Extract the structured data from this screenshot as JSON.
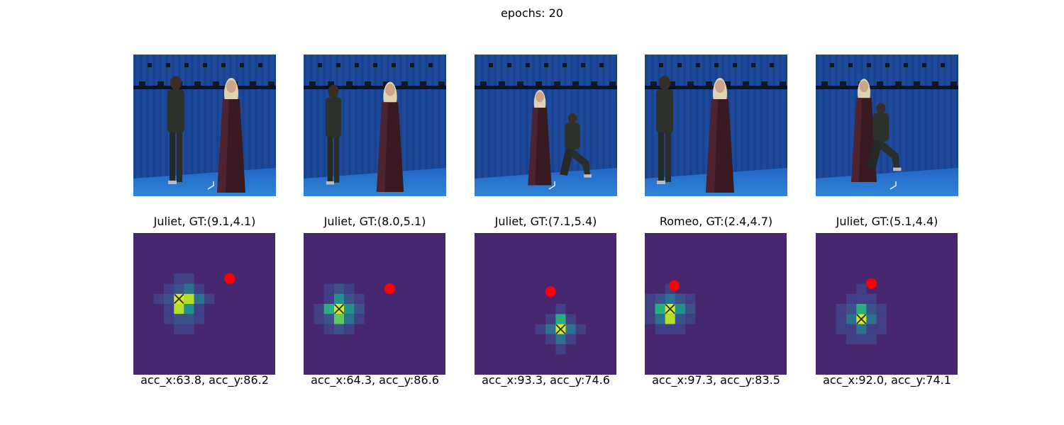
{
  "suptitle": "epochs: 20",
  "colors": {
    "heat_background": "#46266e",
    "heat_scale": [
      "#46266e",
      "#413f85",
      "#3b528b",
      "#2c728e",
      "#21918c",
      "#28ae80",
      "#5ec962",
      "#b5dd2b",
      "#dbe32a"
    ],
    "gt_marker": "#ff0000",
    "pred_marker": "#1a3a2a",
    "studio_blue": "#1e4a9c",
    "floor_blue": "#2f84d8"
  },
  "chart_data": [
    {
      "type": "heatmap",
      "photo_scene": "facing",
      "title": "Juliet, GT:(9.1,4.1)",
      "caption": "acc_x:63.8, acc_y:86.2",
      "grid": 14,
      "pred": [
        4.5,
        6.5
      ],
      "gt": [
        9.5,
        4.5
      ],
      "cells": [
        [
          4,
          6,
          8
        ],
        [
          5,
          6,
          7
        ],
        [
          4,
          7,
          7
        ],
        [
          3,
          6,
          2
        ],
        [
          6,
          6,
          3
        ],
        [
          5,
          5,
          3
        ],
        [
          4,
          5,
          2
        ],
        [
          5,
          7,
          4
        ],
        [
          3,
          7,
          1
        ],
        [
          4,
          8,
          2
        ],
        [
          5,
          8,
          2
        ],
        [
          6,
          7,
          1
        ],
        [
          2,
          6,
          1
        ],
        [
          7,
          6,
          1
        ],
        [
          4,
          4,
          1
        ],
        [
          5,
          4,
          1
        ],
        [
          3,
          5,
          1
        ],
        [
          6,
          5,
          1
        ],
        [
          3,
          8,
          1
        ],
        [
          6,
          8,
          1
        ],
        [
          4,
          9,
          1
        ],
        [
          5,
          9,
          1
        ]
      ]
    },
    {
      "type": "heatmap",
      "photo_scene": "reach",
      "title": "Juliet, GT:(8.0,5.1)",
      "caption": "acc_x:64.3, acc_y:86.6",
      "grid": 14,
      "pred": [
        3.5,
        7.5
      ],
      "gt": [
        8.5,
        5.5
      ],
      "cells": [
        [
          3,
          7,
          8
        ],
        [
          2,
          7,
          5
        ],
        [
          3,
          6,
          4
        ],
        [
          3,
          8,
          6
        ],
        [
          4,
          7,
          4
        ],
        [
          2,
          6,
          1
        ],
        [
          4,
          6,
          2
        ],
        [
          2,
          8,
          2
        ],
        [
          4,
          8,
          3
        ],
        [
          1,
          7,
          1
        ],
        [
          5,
          7,
          2
        ],
        [
          3,
          5,
          2
        ],
        [
          3,
          9,
          2
        ],
        [
          2,
          9,
          1
        ],
        [
          4,
          9,
          1
        ],
        [
          5,
          8,
          1
        ],
        [
          5,
          6,
          1
        ],
        [
          1,
          8,
          1
        ],
        [
          2,
          5,
          1
        ],
        [
          4,
          5,
          1
        ]
      ]
    },
    {
      "type": "heatmap",
      "photo_scene": "kneel",
      "title": "Juliet, GT:(7.1,5.4)",
      "caption": "acc_x:93.3, acc_y:74.6",
      "grid": 14,
      "pred": [
        8.5,
        9.5
      ],
      "gt": [
        7.5,
        5.8
      ],
      "cells": [
        [
          8,
          9,
          8
        ],
        [
          8,
          8,
          5
        ],
        [
          7,
          9,
          3
        ],
        [
          9,
          9,
          3
        ],
        [
          8,
          10,
          3
        ],
        [
          7,
          8,
          1
        ],
        [
          9,
          8,
          1
        ],
        [
          7,
          10,
          1
        ],
        [
          9,
          10,
          1
        ],
        [
          8,
          7,
          1
        ],
        [
          10,
          9,
          1
        ],
        [
          6,
          9,
          1
        ],
        [
          8,
          11,
          1
        ]
      ]
    },
    {
      "type": "heatmap",
      "photo_scene": "facing2",
      "title": "Romeo, GT:(2.4,4.7)",
      "caption": "acc_x:97.3, acc_y:83.5",
      "grid": 14,
      "pred": [
        2.5,
        7.5
      ],
      "gt": [
        2.9,
        5.2
      ],
      "cells": [
        [
          2,
          7,
          8
        ],
        [
          2,
          8,
          7
        ],
        [
          1,
          7,
          5
        ],
        [
          3,
          7,
          4
        ],
        [
          2,
          6,
          3
        ],
        [
          1,
          8,
          3
        ],
        [
          3,
          8,
          2
        ],
        [
          1,
          6,
          2
        ],
        [
          3,
          6,
          2
        ],
        [
          0,
          7,
          1
        ],
        [
          4,
          7,
          2
        ],
        [
          2,
          9,
          1
        ],
        [
          1,
          9,
          1
        ],
        [
          3,
          9,
          1
        ],
        [
          0,
          8,
          1
        ],
        [
          4,
          8,
          1
        ],
        [
          2,
          5,
          1
        ],
        [
          4,
          6,
          1
        ],
        [
          0,
          6,
          1
        ]
      ]
    },
    {
      "type": "heatmap",
      "photo_scene": "kneel2",
      "title": "Juliet, GT:(5.1,4.4)",
      "caption": "acc_x:92.0, acc_y:74.1",
      "grid": 14,
      "pred": [
        4.5,
        8.5
      ],
      "gt": [
        5.5,
        5.0
      ],
      "cells": [
        [
          4,
          8,
          8
        ],
        [
          4,
          7,
          5
        ],
        [
          3,
          8,
          3
        ],
        [
          5,
          8,
          3
        ],
        [
          4,
          9,
          3
        ],
        [
          3,
          7,
          2
        ],
        [
          5,
          7,
          2
        ],
        [
          3,
          9,
          1
        ],
        [
          5,
          9,
          1
        ],
        [
          2,
          8,
          1
        ],
        [
          6,
          8,
          1
        ],
        [
          4,
          6,
          1
        ],
        [
          4,
          10,
          1
        ],
        [
          2,
          7,
          1
        ],
        [
          6,
          7,
          1
        ],
        [
          2,
          9,
          1
        ],
        [
          6,
          9,
          1
        ],
        [
          3,
          10,
          1
        ],
        [
          5,
          10,
          1
        ],
        [
          4,
          5,
          1
        ],
        [
          3,
          6,
          1
        ],
        [
          5,
          6,
          1
        ]
      ]
    }
  ]
}
